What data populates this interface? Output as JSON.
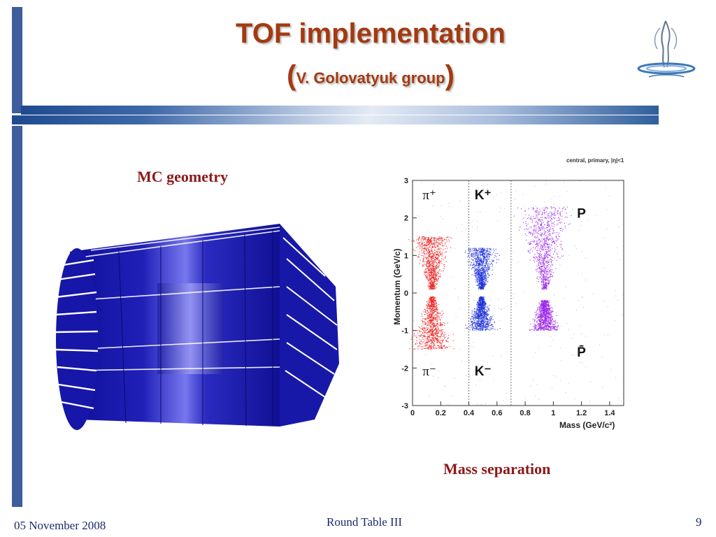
{
  "slide": {
    "title": "TOF implementation",
    "subtitle_open": "(",
    "subtitle_text": "V. Golovatyuk group",
    "subtitle_close": ")",
    "left_caption": "MC geometry",
    "right_caption": "Mass separation",
    "colors": {
      "title": "#a33a12",
      "caption": "#8b1a1a",
      "bar": "#3d5d9c",
      "geometry": "#1a1ab8"
    },
    "logo_icon": "nica-emblem-icon"
  },
  "footer": {
    "date": "05 November 2008",
    "center": "Round Table III",
    "page": "9"
  },
  "chart_data": {
    "type": "scatter",
    "title": "central, primary, |η|<1",
    "xlabel": "Mass (GeV/c²)",
    "ylabel": "Momentum (GeV/c)",
    "xlim": [
      0,
      1.5
    ],
    "ylim": [
      -3,
      3
    ],
    "xticks": [
      "0",
      "0.2",
      "0.4",
      "0.6",
      "0.8",
      "1",
      "1.2",
      "1.4"
    ],
    "yticks": [
      "3",
      "2",
      "1",
      "0",
      "-1",
      "-2",
      "-3"
    ],
    "divider_masses": [
      0.4,
      0.7
    ],
    "annotations": [
      {
        "text": "π⁺",
        "x": 0.12,
        "y": 2.5
      },
      {
        "text": "K⁺",
        "x": 0.5,
        "y": 2.5
      },
      {
        "text": "P",
        "x": 1.2,
        "y": 2.0
      },
      {
        "text": "π⁻",
        "x": 0.12,
        "y": -2.2
      },
      {
        "text": "K⁻",
        "x": 0.5,
        "y": -2.2
      },
      {
        "text": "P̄",
        "x": 1.2,
        "y": -1.7
      }
    ],
    "series": [
      {
        "name": "π⁺",
        "color": "#ee1c1c",
        "mass": 0.14,
        "p_range": [
          0.1,
          1.5
        ]
      },
      {
        "name": "π⁻",
        "color": "#ee1c1c",
        "mass": 0.14,
        "p_range": [
          -1.5,
          -0.1
        ]
      },
      {
        "name": "K⁺",
        "color": "#1c2fd8",
        "mass": 0.49,
        "p_range": [
          0.1,
          1.2
        ]
      },
      {
        "name": "K⁻",
        "color": "#1c2fd8",
        "mass": 0.49,
        "p_range": [
          -1.0,
          -0.1
        ]
      },
      {
        "name": "P",
        "color": "#9a22e8",
        "mass": 0.94,
        "p_range": [
          0.1,
          2.3
        ]
      },
      {
        "name": "P̄",
        "color": "#9a22e8",
        "mass": 0.94,
        "p_range": [
          -1.0,
          -0.2
        ]
      }
    ]
  }
}
